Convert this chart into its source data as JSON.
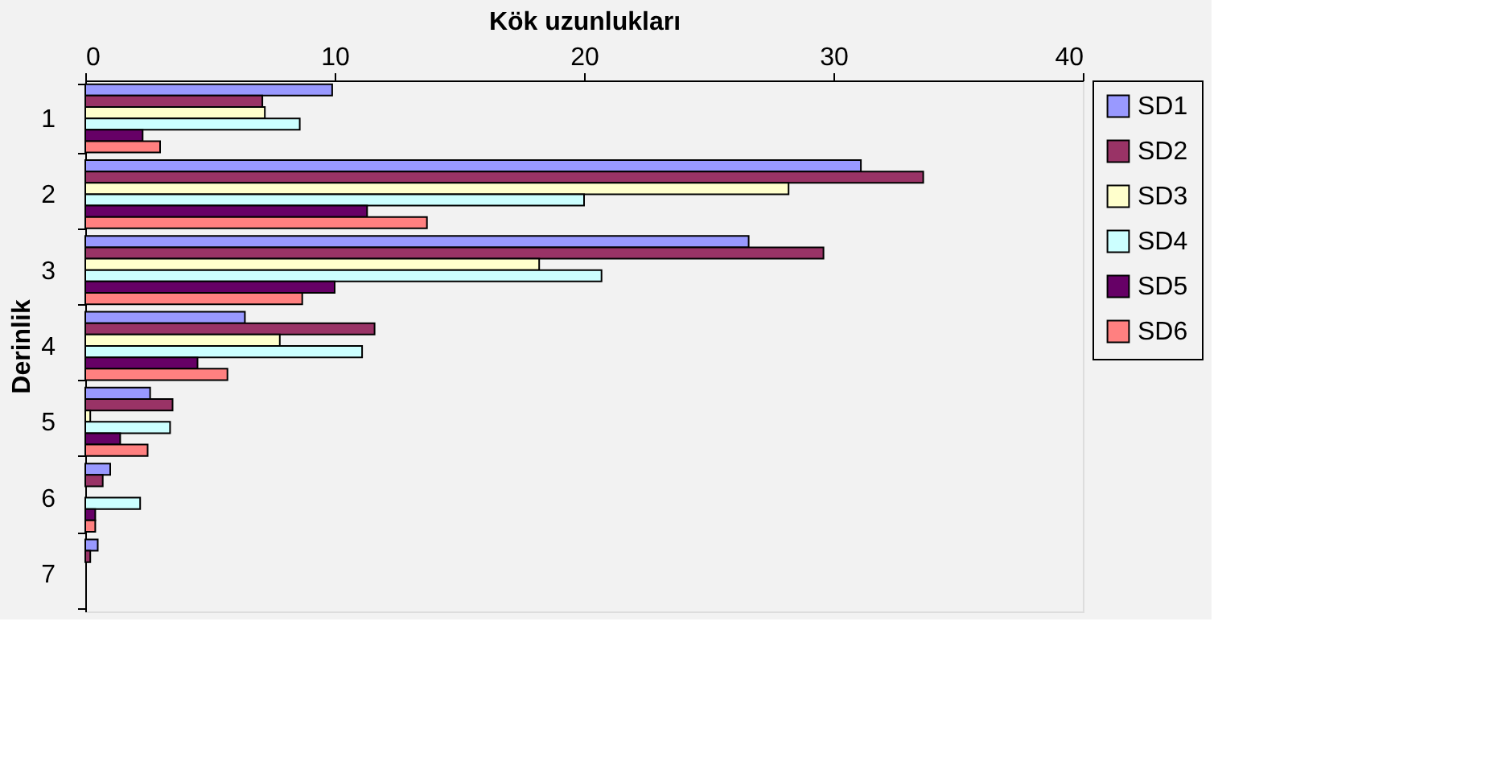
{
  "chart_data": {
    "type": "bar",
    "orientation": "horizontal",
    "xlabel": "Kök uzunlukları",
    "ylabel": "Derinlik",
    "categories": [
      "1",
      "2",
      "3",
      "4",
      "5",
      "6",
      "7"
    ],
    "series": [
      {
        "name": "SD1",
        "color": "#9999ff",
        "values": [
          9.9,
          31.1,
          26.6,
          6.4,
          2.6,
          1.0,
          0.5
        ]
      },
      {
        "name": "SD2",
        "color": "#993366",
        "values": [
          7.1,
          33.6,
          29.6,
          11.6,
          3.5,
          0.7,
          0.2
        ]
      },
      {
        "name": "SD3",
        "color": "#ffffcc",
        "values": [
          7.2,
          28.2,
          18.2,
          7.8,
          0.2,
          null,
          null
        ]
      },
      {
        "name": "SD4",
        "color": "#ccffff",
        "values": [
          8.6,
          20.0,
          20.7,
          11.1,
          3.4,
          2.2,
          null
        ]
      },
      {
        "name": "SD5",
        "color": "#660066",
        "values": [
          2.3,
          11.3,
          10.0,
          4.5,
          1.4,
          0.4,
          null
        ]
      },
      {
        "name": "SD6",
        "color": "#ff8080",
        "values": [
          3.0,
          13.7,
          8.7,
          5.7,
          2.5,
          0.4,
          null
        ]
      }
    ],
    "xlim": [
      0,
      40
    ],
    "xticks": [
      0,
      10,
      20,
      30,
      40
    ],
    "grid": false,
    "legend": "right"
  }
}
